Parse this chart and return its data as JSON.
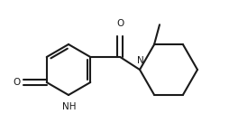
{
  "background_color": "#ffffff",
  "line_color": "#1a1a1a",
  "line_width": 1.5,
  "text_color": "#1a1a1a",
  "font_size": 7.5,
  "figsize": [
    2.54,
    1.47
  ],
  "dpi": 100,
  "NH_label": "NH",
  "O_label1": "O",
  "O_label2": "O",
  "N_label": "N"
}
